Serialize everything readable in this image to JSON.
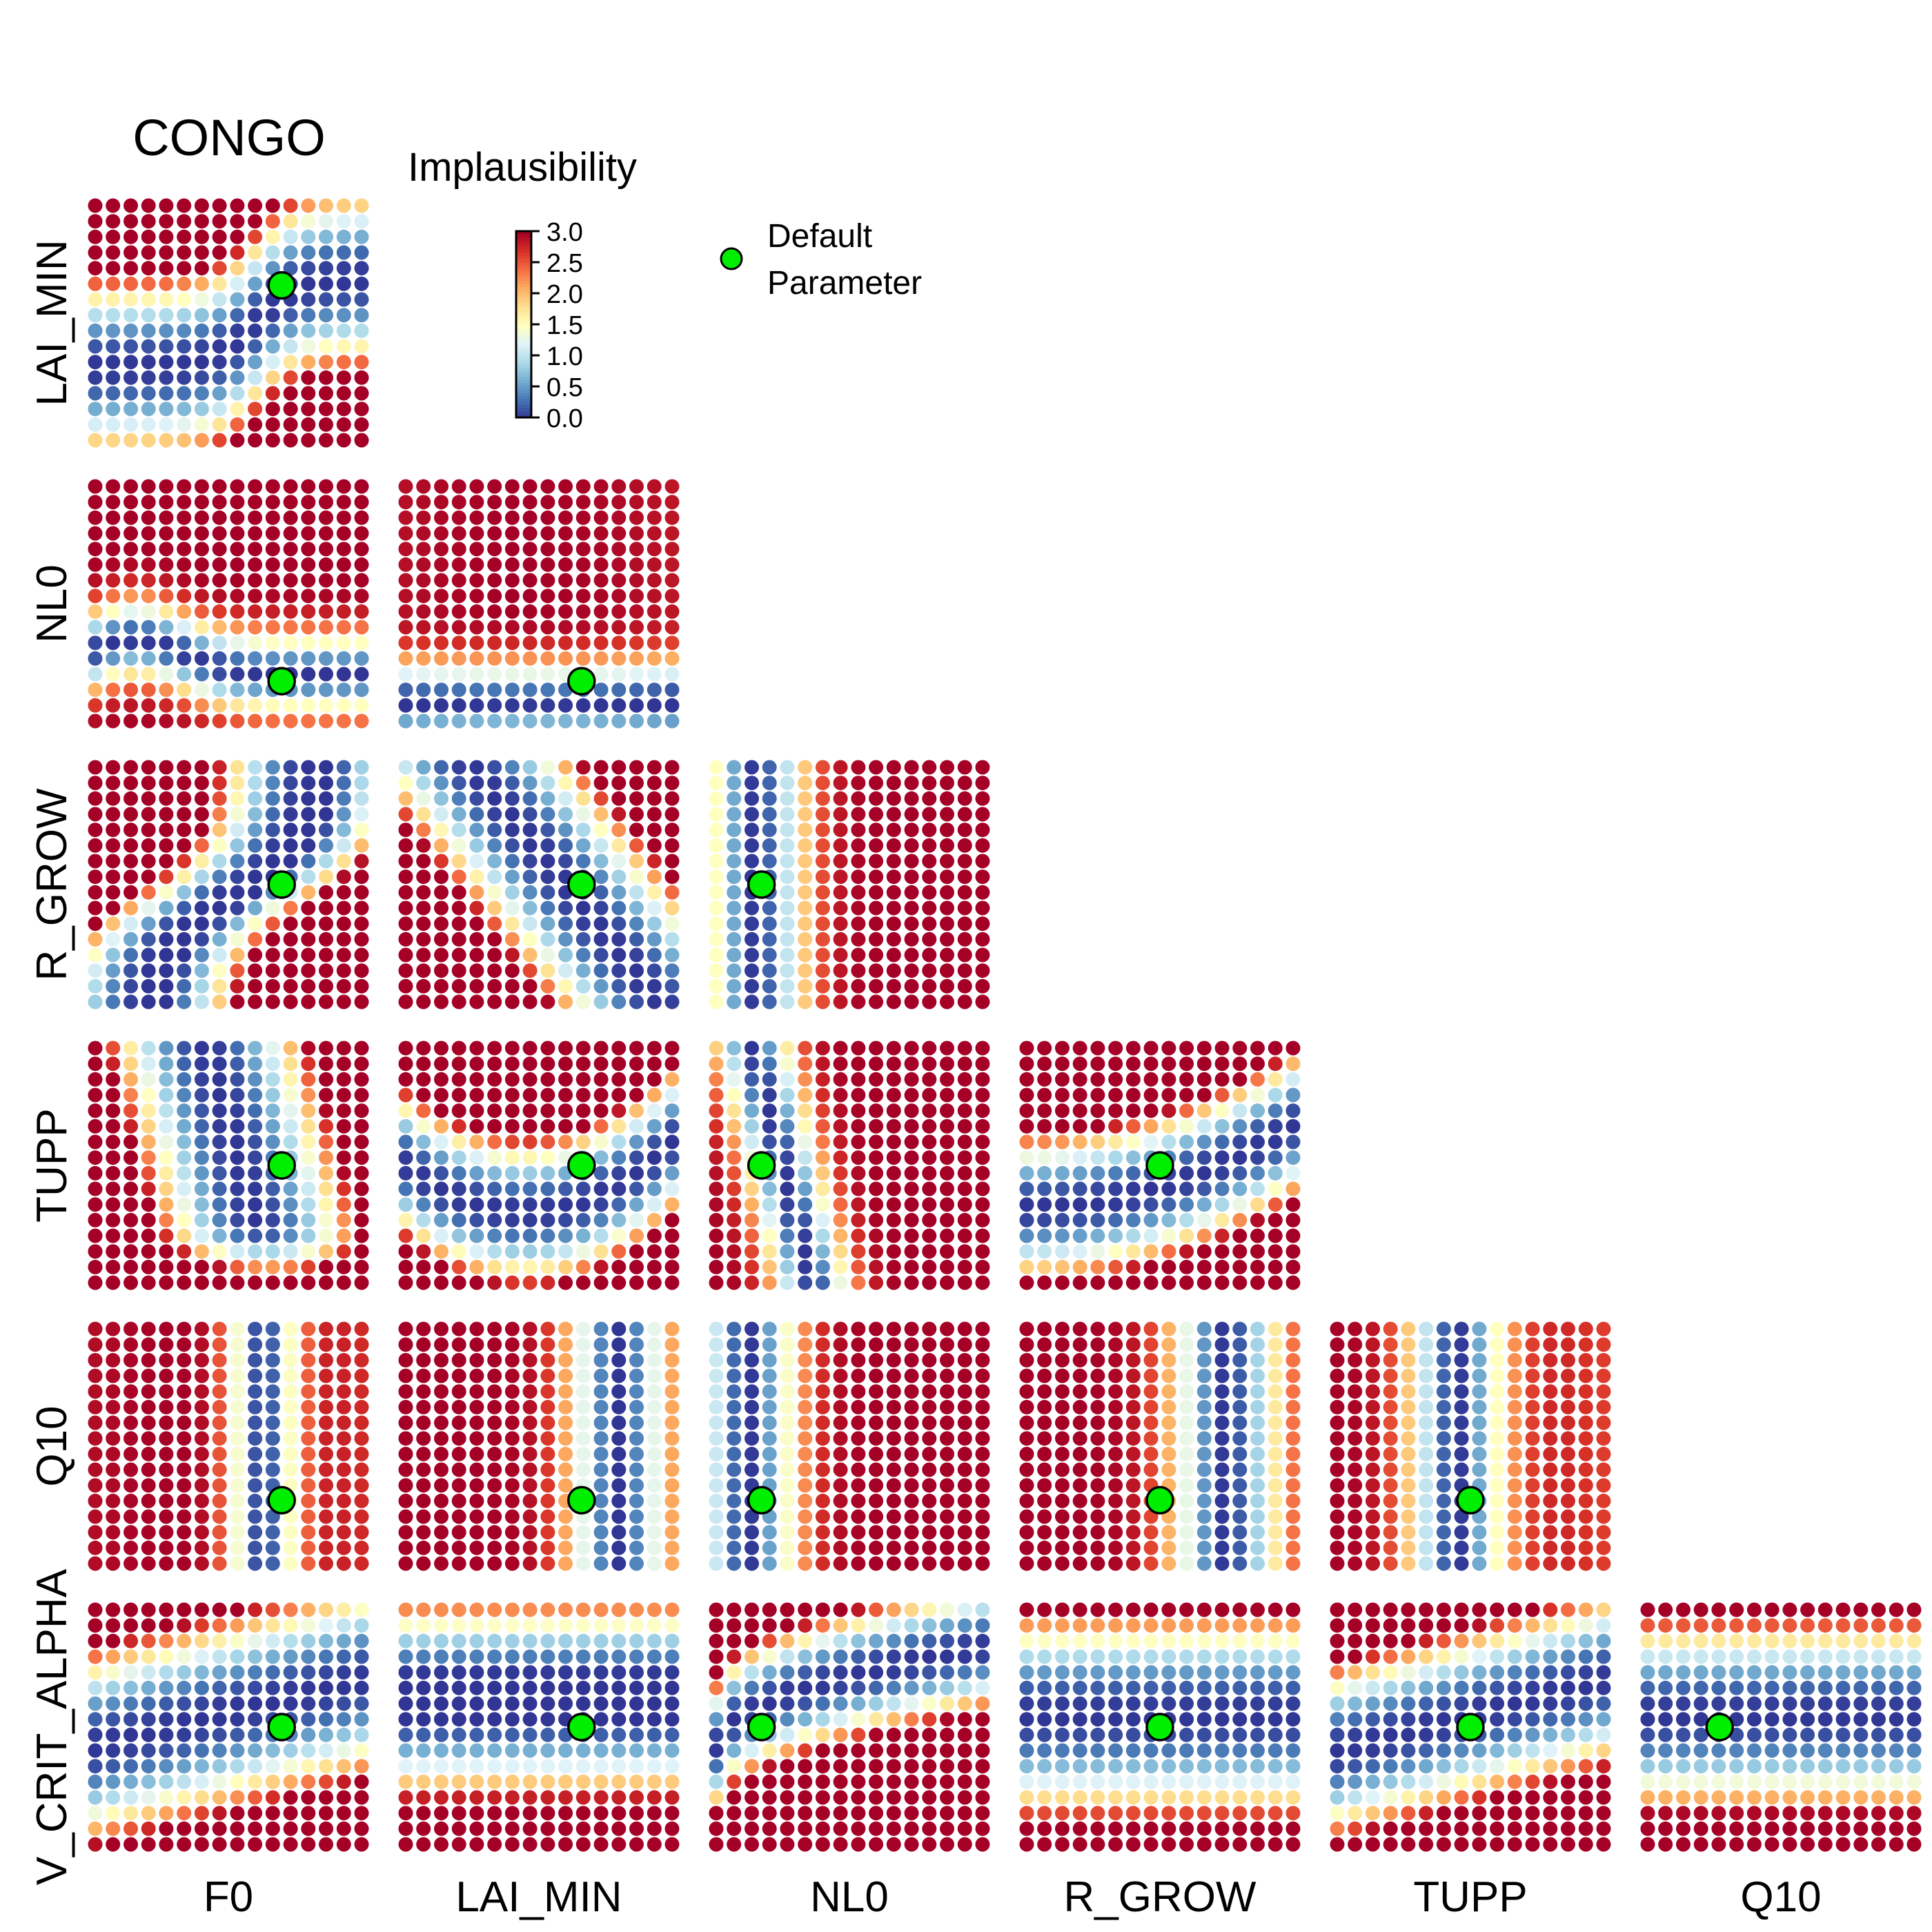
{
  "chart_data": {
    "type": "heatmap",
    "title": "CONGO",
    "parameters": [
      "F0",
      "LAI_MIN",
      "NL0",
      "R_GROW",
      "TUPP",
      "Q10",
      "V_CRIT_ALPHA"
    ],
    "x_labels": [
      "F0",
      "LAI_MIN",
      "NL0",
      "R_GROW",
      "TUPP",
      "Q10"
    ],
    "y_labels": [
      "LAI_MIN",
      "NL0",
      "R_GROW",
      "TUPP",
      "Q10",
      "V_CRIT_ALPHA"
    ],
    "colorbar": {
      "title": "Implausibility",
      "ticks": [
        "3.0",
        "2.5",
        "2.0",
        "1.5",
        "1.0",
        "0.5",
        "0.0"
      ],
      "range": [
        0,
        3
      ],
      "palette": [
        "#313695",
        "#4575b4",
        "#74add1",
        "#abd9e9",
        "#e0f3f8",
        "#ffffbf",
        "#fee090",
        "#fdae61",
        "#f46d43",
        "#d73027",
        "#a50026"
      ]
    },
    "legend": {
      "label_line1": "Default",
      "label_line2": "Parameter",
      "marker_color": "#00ee00"
    },
    "grid_size": 16,
    "default_parameter_fraction": {
      "F0": 0.7,
      "LAI_MIN": 0.66,
      "NL0": 0.17,
      "R_GROW": 0.5,
      "TUPP": 0.5,
      "Q10": 0.27,
      "V_CRIT_ALPHA": 0.5
    }
  }
}
